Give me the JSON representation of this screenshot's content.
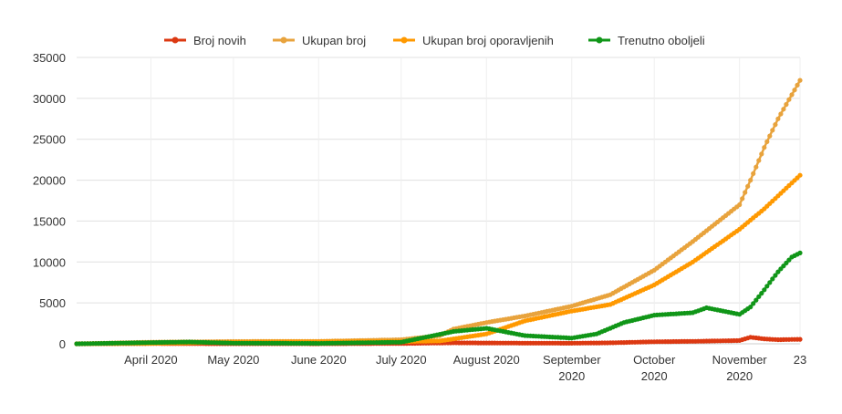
{
  "chart_data": {
    "type": "line",
    "title": "",
    "xlabel": "",
    "ylabel": "",
    "ylim": [
      0,
      35000
    ],
    "yticks": [
      0,
      5000,
      10000,
      15000,
      20000,
      25000,
      30000,
      35000
    ],
    "x_range": [
      "2020-03-05",
      "2020-11-23"
    ],
    "grid": true,
    "legend_position": "top-center",
    "x_tick_labels": [
      {
        "date": "2020-04-01",
        "lines": [
          "April 2020"
        ]
      },
      {
        "date": "2020-05-01",
        "lines": [
          "May 2020"
        ]
      },
      {
        "date": "2020-06-01",
        "lines": [
          "June 2020"
        ]
      },
      {
        "date": "2020-07-01",
        "lines": [
          "July 2020"
        ]
      },
      {
        "date": "2020-08-01",
        "lines": [
          "August 2020"
        ]
      },
      {
        "date": "2020-09-01",
        "lines": [
          "September",
          "2020"
        ]
      },
      {
        "date": "2020-10-01",
        "lines": [
          "October",
          "2020"
        ]
      },
      {
        "date": "2020-11-01",
        "lines": [
          "November",
          "2020"
        ]
      },
      {
        "date": "2020-11-23",
        "lines": [
          "23"
        ]
      }
    ],
    "series": [
      {
        "name": "Broj novih",
        "color": "#dc3912",
        "points": [
          [
            "2020-03-05",
            0
          ],
          [
            "2020-04-01",
            30
          ],
          [
            "2020-05-01",
            10
          ],
          [
            "2020-06-01",
            5
          ],
          [
            "2020-07-01",
            40
          ],
          [
            "2020-07-20",
            120
          ],
          [
            "2020-08-01",
            100
          ],
          [
            "2020-08-15",
            80
          ],
          [
            "2020-09-01",
            70
          ],
          [
            "2020-09-15",
            120
          ],
          [
            "2020-10-01",
            250
          ],
          [
            "2020-10-15",
            300
          ],
          [
            "2020-11-01",
            400
          ],
          [
            "2020-11-05",
            800
          ],
          [
            "2020-11-10",
            600
          ],
          [
            "2020-11-15",
            500
          ],
          [
            "2020-11-23",
            550
          ]
        ]
      },
      {
        "name": "Ukupan broj",
        "color": "#e8a33d",
        "points": [
          [
            "2020-03-05",
            0
          ],
          [
            "2020-04-01",
            200
          ],
          [
            "2020-05-01",
            280
          ],
          [
            "2020-06-01",
            300
          ],
          [
            "2020-07-01",
            500
          ],
          [
            "2020-07-15",
            1000
          ],
          [
            "2020-07-20",
            1800
          ],
          [
            "2020-08-01",
            2600
          ],
          [
            "2020-08-15",
            3400
          ],
          [
            "2020-09-01",
            4600
          ],
          [
            "2020-09-15",
            6000
          ],
          [
            "2020-10-01",
            9000
          ],
          [
            "2020-10-15",
            12500
          ],
          [
            "2020-11-01",
            17000
          ],
          [
            "2020-11-05",
            20000
          ],
          [
            "2020-11-10",
            24000
          ],
          [
            "2020-11-15",
            27500
          ],
          [
            "2020-11-23",
            32200
          ]
        ]
      },
      {
        "name": "Ukupan broj oporavljenih",
        "color": "#ff9900",
        "points": [
          [
            "2020-03-05",
            0
          ],
          [
            "2020-04-01",
            50
          ],
          [
            "2020-05-01",
            200
          ],
          [
            "2020-06-01",
            250
          ],
          [
            "2020-07-01",
            280
          ],
          [
            "2020-07-15",
            350
          ],
          [
            "2020-08-01",
            1200
          ],
          [
            "2020-08-15",
            2800
          ],
          [
            "2020-09-01",
            4000
          ],
          [
            "2020-09-15",
            4800
          ],
          [
            "2020-10-01",
            7200
          ],
          [
            "2020-10-15",
            10000
          ],
          [
            "2020-11-01",
            14000
          ],
          [
            "2020-11-10",
            16500
          ],
          [
            "2020-11-23",
            20600
          ]
        ]
      },
      {
        "name": "Trenutno oboljeli",
        "color": "#109618",
        "points": [
          [
            "2020-03-05",
            0
          ],
          [
            "2020-04-01",
            150
          ],
          [
            "2020-04-15",
            220
          ],
          [
            "2020-05-01",
            80
          ],
          [
            "2020-06-01",
            50
          ],
          [
            "2020-07-01",
            200
          ],
          [
            "2020-07-20",
            1500
          ],
          [
            "2020-08-01",
            1900
          ],
          [
            "2020-08-15",
            1000
          ],
          [
            "2020-09-01",
            700
          ],
          [
            "2020-09-10",
            1200
          ],
          [
            "2020-09-20",
            2600
          ],
          [
            "2020-10-01",
            3500
          ],
          [
            "2020-10-15",
            3800
          ],
          [
            "2020-10-20",
            4400
          ],
          [
            "2020-11-01",
            3600
          ],
          [
            "2020-11-05",
            4500
          ],
          [
            "2020-11-10",
            6600
          ],
          [
            "2020-11-15",
            8800
          ],
          [
            "2020-11-20",
            10600
          ],
          [
            "2020-11-23",
            11100
          ]
        ]
      }
    ]
  }
}
